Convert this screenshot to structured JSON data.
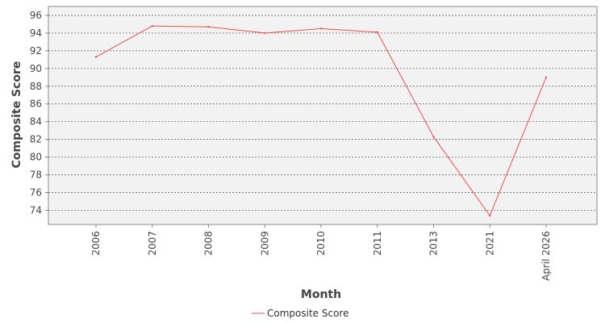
{
  "chart_data": {
    "type": "line",
    "title": "",
    "xlabel": "Month",
    "ylabel": "Composite Score",
    "categories": [
      "2006",
      "2007",
      "2008",
      "2009",
      "2010",
      "2011",
      "2013",
      "2021",
      "April 2026"
    ],
    "series": [
      {
        "name": "Composite Score",
        "color": "#f05050",
        "values": [
          91.3,
          94.8,
          94.7,
          94.0,
          94.5,
          94.1,
          82.3,
          73.4,
          89.0
        ]
      }
    ],
    "yticks": [
      74,
      76,
      78,
      80,
      82,
      84,
      86,
      88,
      90,
      92,
      94,
      96
    ],
    "ylim": [
      72.4,
      97.0
    ],
    "grid": true,
    "legend": "bottom-center"
  }
}
